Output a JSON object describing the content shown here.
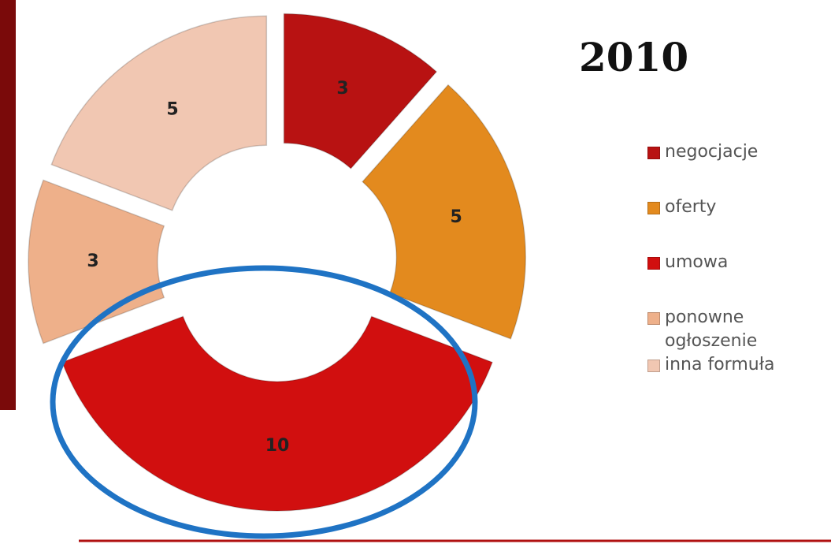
{
  "chart_data": {
    "type": "donut",
    "title": "2010",
    "categories": [
      "negocjacje",
      "oferty",
      "umowa",
      "ponowne ogłoszenie",
      "inna formuła"
    ],
    "values": [
      3,
      5,
      10,
      3,
      5
    ],
    "colors": [
      "#b81212",
      "#e38a1e",
      "#d10f0f",
      "#eeb08a",
      "#f1c7b2"
    ],
    "legend": "right"
  }
}
